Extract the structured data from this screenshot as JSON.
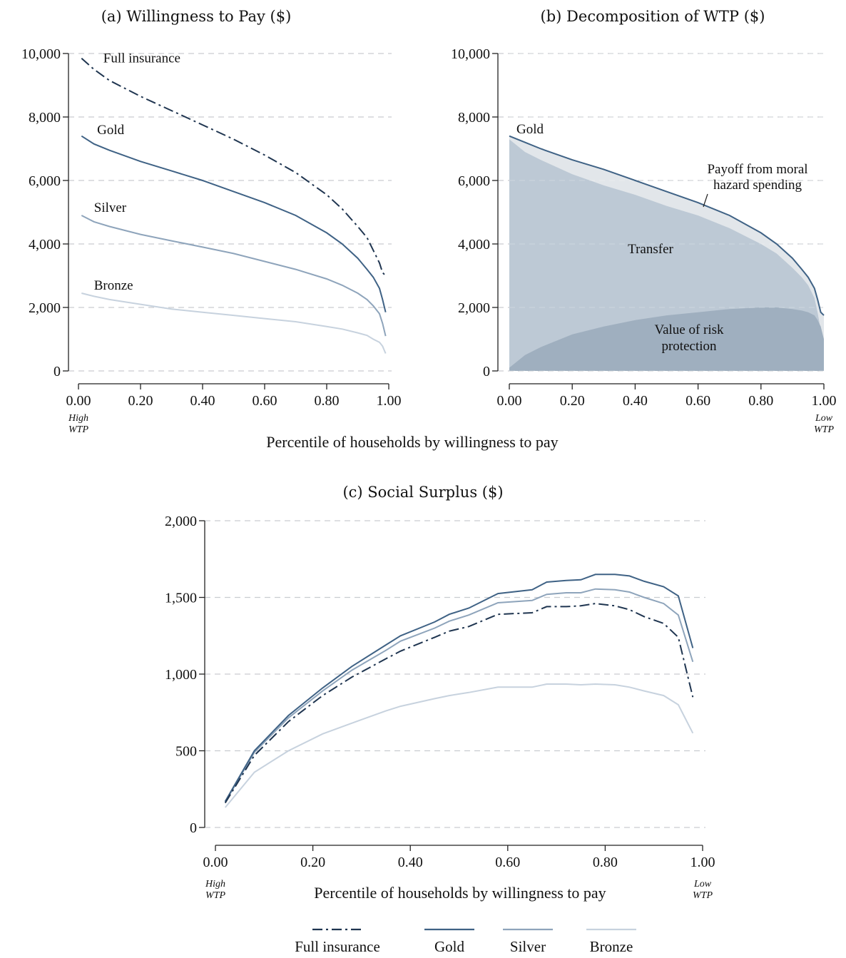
{
  "colors": {
    "full_insurance": "#1f3550",
    "gold": "#3f6285",
    "silver": "#8ea4bb",
    "bronze": "#c7d2de",
    "transfer_fill": "#bdc9d5",
    "moral_hazard_fill": "#e2e6ea",
    "risk_fill": "#9fafbf"
  },
  "shared": {
    "xlabel_top": "Percentile of households by willingness to pay",
    "left_end": [
      "High",
      "WTP"
    ],
    "right_end": [
      "Low",
      "WTP"
    ]
  },
  "legend": [
    {
      "name": "Full insurance",
      "key": "full_insurance",
      "style": "dashdot"
    },
    {
      "name": "Gold",
      "key": "gold",
      "style": "solid"
    },
    {
      "name": "Silver",
      "key": "silver",
      "style": "solid"
    },
    {
      "name": "Bronze",
      "key": "bronze",
      "style": "solid"
    }
  ],
  "chart_data": [
    {
      "id": "a",
      "type": "line",
      "title": "(a) Willingness to Pay ($)",
      "xlabel": "",
      "ylabel": "",
      "xlim": [
        0,
        1
      ],
      "ylim": [
        0,
        10000
      ],
      "xticks": [
        "0.00",
        "0.20",
        "0.40",
        "0.60",
        "0.80",
        "1.00"
      ],
      "yticks": [
        "0",
        "2,000",
        "4,000",
        "6,000",
        "8,000",
        "10,000"
      ],
      "grid": "horizontal dashed",
      "series": [
        {
          "name": "Full insurance",
          "key": "full_insurance",
          "style": "dashdot",
          "x": [
            0.01,
            0.05,
            0.1,
            0.2,
            0.3,
            0.4,
            0.5,
            0.6,
            0.7,
            0.8,
            0.85,
            0.9,
            0.93,
            0.95,
            0.97,
            0.98,
            0.99
          ],
          "y": [
            9850,
            9500,
            9150,
            8650,
            8200,
            7750,
            7300,
            6800,
            6250,
            5550,
            5100,
            4550,
            4200,
            3800,
            3400,
            3100,
            3000
          ]
        },
        {
          "name": "Gold",
          "key": "gold",
          "style": "solid",
          "x": [
            0.01,
            0.05,
            0.1,
            0.2,
            0.3,
            0.4,
            0.5,
            0.6,
            0.7,
            0.8,
            0.85,
            0.9,
            0.93,
            0.95,
            0.97,
            0.98,
            0.99
          ],
          "y": [
            7400,
            7150,
            6950,
            6600,
            6300,
            6000,
            5650,
            5300,
            4900,
            4350,
            4000,
            3550,
            3200,
            2950,
            2600,
            2250,
            1850
          ]
        },
        {
          "name": "Silver",
          "key": "silver",
          "style": "solid",
          "x": [
            0.01,
            0.05,
            0.1,
            0.2,
            0.3,
            0.4,
            0.5,
            0.6,
            0.7,
            0.8,
            0.85,
            0.9,
            0.93,
            0.95,
            0.97,
            0.98,
            0.99
          ],
          "y": [
            4900,
            4700,
            4550,
            4300,
            4100,
            3900,
            3700,
            3450,
            3200,
            2900,
            2700,
            2450,
            2250,
            2050,
            1800,
            1500,
            1100
          ]
        },
        {
          "name": "Bronze",
          "key": "bronze",
          "style": "solid",
          "x": [
            0.01,
            0.05,
            0.1,
            0.2,
            0.3,
            0.4,
            0.5,
            0.6,
            0.7,
            0.8,
            0.85,
            0.9,
            0.93,
            0.95,
            0.97,
            0.98,
            0.99
          ],
          "y": [
            2450,
            2350,
            2250,
            2100,
            1950,
            1850,
            1750,
            1650,
            1550,
            1400,
            1320,
            1200,
            1120,
            1000,
            900,
            780,
            550
          ]
        }
      ],
      "annotations": [
        {
          "text": "Full insurance",
          "x": 0.08,
          "y": 9850
        },
        {
          "text": "Gold",
          "x": 0.06,
          "y": 7600
        },
        {
          "text": "Silver",
          "x": 0.05,
          "y": 5150
        },
        {
          "text": "Bronze",
          "x": 0.05,
          "y": 2700
        }
      ]
    },
    {
      "id": "b",
      "type": "area",
      "title": "(b) Decomposition of WTP ($)",
      "xlabel": "",
      "ylabel": "",
      "xlim": [
        0,
        1
      ],
      "ylim": [
        0,
        10000
      ],
      "xticks": [
        "0.00",
        "0.20",
        "0.40",
        "0.60",
        "0.80",
        "1.00"
      ],
      "yticks": [
        "0",
        "2,000",
        "4,000",
        "6,000",
        "8,000",
        "10,000"
      ],
      "grid": "horizontal dashed",
      "x": [
        0.0,
        0.05,
        0.1,
        0.2,
        0.3,
        0.4,
        0.5,
        0.6,
        0.7,
        0.8,
        0.85,
        0.9,
        0.93,
        0.95,
        0.97,
        0.98,
        0.99,
        1.0
      ],
      "gold_wtp": [
        7400,
        7200,
        7000,
        6650,
        6350,
        6000,
        5650,
        5300,
        4900,
        4350,
        4000,
        3550,
        3200,
        2950,
        2600,
        2250,
        1850,
        1750
      ],
      "transfer_top": [
        7300,
        6900,
        6650,
        6200,
        5850,
        5550,
        5200,
        4900,
        4500,
        4000,
        3700,
        3250,
        2950,
        2700,
        2300,
        1850,
        1300,
        1000
      ],
      "risk_protection": [
        100,
        500,
        750,
        1150,
        1400,
        1600,
        1750,
        1850,
        1950,
        2000,
        2000,
        1950,
        1900,
        1850,
        1750,
        1600,
        1400,
        1000
      ],
      "series_labels": {
        "gold": "Gold",
        "transfer": "Transfer",
        "risk": [
          "Value of risk",
          "protection"
        ],
        "moral_hazard": [
          "Payoff from moral",
          "hazard spending"
        ]
      }
    },
    {
      "id": "c",
      "type": "line",
      "title": "(c) Social Surplus ($)",
      "xlabel": "Percentile of households by willingness to pay",
      "ylabel": "",
      "xlim": [
        0,
        1
      ],
      "ylim": [
        0,
        2000
      ],
      "xticks": [
        "0.00",
        "0.20",
        "0.40",
        "0.60",
        "0.80",
        "1.00"
      ],
      "yticks": [
        "0",
        "500",
        "1,000",
        "1,500",
        "2,000"
      ],
      "grid": "horizontal dashed",
      "x": [
        0.02,
        0.08,
        0.15,
        0.22,
        0.28,
        0.35,
        0.38,
        0.45,
        0.48,
        0.52,
        0.58,
        0.65,
        0.68,
        0.72,
        0.75,
        0.78,
        0.82,
        0.85,
        0.88,
        0.92,
        0.95,
        0.98
      ],
      "series": [
        {
          "name": "Full insurance",
          "key": "full_insurance",
          "style": "dashdot",
          "values": [
            160,
            470,
            690,
            860,
            980,
            1100,
            1150,
            1240,
            1280,
            1310,
            1390,
            1400,
            1440,
            1440,
            1445,
            1460,
            1445,
            1420,
            1375,
            1330,
            1240,
            850
          ]
        },
        {
          "name": "Gold",
          "key": "gold",
          "style": "solid",
          "values": [
            170,
            500,
            730,
            910,
            1050,
            1190,
            1250,
            1340,
            1390,
            1430,
            1525,
            1550,
            1600,
            1610,
            1615,
            1650,
            1650,
            1640,
            1605,
            1570,
            1510,
            1170
          ]
        },
        {
          "name": "Silver",
          "key": "silver",
          "style": "solid",
          "values": [
            165,
            490,
            715,
            890,
            1025,
            1155,
            1215,
            1300,
            1345,
            1385,
            1465,
            1480,
            1520,
            1530,
            1530,
            1555,
            1550,
            1535,
            1500,
            1460,
            1385,
            1080
          ]
        },
        {
          "name": "Bronze",
          "key": "bronze",
          "style": "solid",
          "values": [
            130,
            360,
            500,
            610,
            680,
            760,
            790,
            840,
            860,
            880,
            915,
            915,
            935,
            935,
            930,
            935,
            930,
            915,
            890,
            860,
            800,
            615
          ]
        }
      ]
    }
  ]
}
